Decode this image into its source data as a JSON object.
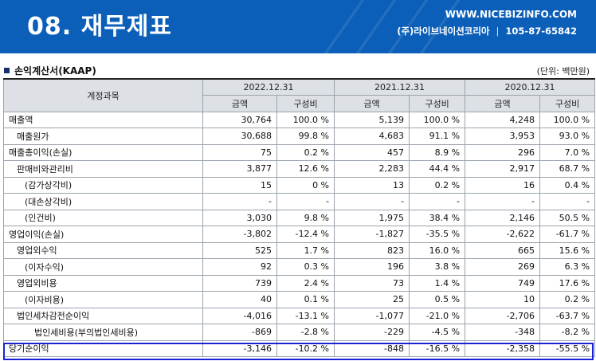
{
  "banner": {
    "title": "08. 재무제표",
    "url": "WWW.NICEBIZINFO.COM",
    "company": "(주)라이브네이션코리아",
    "separator": "|",
    "biz_no": "105-87-65842"
  },
  "section": {
    "title": "손익계산서(KAAP)",
    "unit": "(단위: 백만원)"
  },
  "table": {
    "account_header": "계정과목",
    "years": [
      "2022.12.31",
      "2021.12.31",
      "2020.12.31"
    ],
    "sub_headers": [
      "금액",
      "구성비",
      "금액",
      "구성비",
      "금액",
      "구성비"
    ],
    "rows": [
      {
        "item": "매출액",
        "cells": [
          "30,764",
          "100.0 %",
          "5,139",
          "100.0 %",
          "4,248",
          "100.0 %"
        ]
      },
      {
        "item": "매출원가",
        "cells": [
          "30,688",
          "99.8 %",
          "4,683",
          "91.1 %",
          "3,953",
          "93.0 %"
        ]
      },
      {
        "item": "매출총이익(손실)",
        "cells": [
          "75",
          "0.2 %",
          "457",
          "8.9 %",
          "296",
          "7.0 %"
        ]
      },
      {
        "item": "판매비와관리비",
        "cells": [
          "3,877",
          "12.6 %",
          "2,283",
          "44.4 %",
          "2,917",
          "68.7 %"
        ]
      },
      {
        "item": "(감가상각비)",
        "cells": [
          "15",
          "0 %",
          "13",
          "0.2 %",
          "16",
          "0.4 %"
        ]
      },
      {
        "item": "(대손상각비)",
        "cells": [
          "-",
          "-",
          "-",
          "-",
          "-",
          "-"
        ]
      },
      {
        "item": "(인건비)",
        "cells": [
          "3,030",
          "9.8 %",
          "1,975",
          "38.4 %",
          "2,146",
          "50.5 %"
        ]
      },
      {
        "item": "영업이익(손실)",
        "cells": [
          "-3,802",
          "-12.4 %",
          "-1,827",
          "-35.5 %",
          "-2,622",
          "-61.7 %"
        ]
      },
      {
        "item": "영업외수익",
        "cells": [
          "525",
          "1.7 %",
          "823",
          "16.0 %",
          "665",
          "15.6 %"
        ]
      },
      {
        "item": "(이자수익)",
        "cells": [
          "92",
          "0.3 %",
          "196",
          "3.8 %",
          "269",
          "6.3 %"
        ]
      },
      {
        "item": "영업외비용",
        "cells": [
          "739",
          "2.4 %",
          "73",
          "1.4 %",
          "749",
          "17.6 %"
        ]
      },
      {
        "item": "(이자비용)",
        "cells": [
          "40",
          "0.1 %",
          "25",
          "0.5 %",
          "10",
          "0.2 %"
        ]
      },
      {
        "item": "법인세차감전순이익",
        "cells": [
          "-4,016",
          "-13.1 %",
          "-1,077",
          "-21.0 %",
          "-2,706",
          "-63.7 %"
        ]
      },
      {
        "item": "법인세비용(부의법인세비용)",
        "cells": [
          "-869",
          "-2.8 %",
          "-229",
          "-4.5 %",
          "-348",
          "-8.2 %"
        ]
      },
      {
        "item": "당기순이익",
        "cells": [
          "-3,146",
          "-10.2 %",
          "-848",
          "-16.5 %",
          "-2,358",
          "-55.5 %"
        ]
      }
    ]
  }
}
